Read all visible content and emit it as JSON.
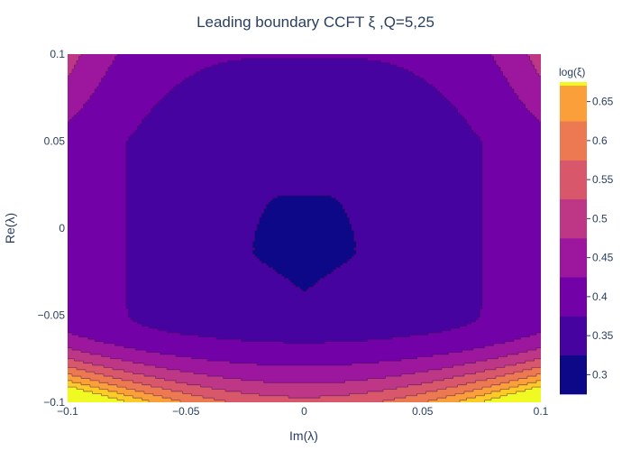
{
  "chart_data": {
    "type": "contour",
    "title": "Leading boundary CCFT ξ ,Q=5,25",
    "xlabel": "Im(λ)",
    "ylabel": "Re(λ)",
    "xlim": [
      -0.1,
      0.1
    ],
    "ylim": [
      -0.1,
      0.1
    ],
    "x_ticks": [
      {
        "value": -0.1,
        "label": "−0.1"
      },
      {
        "value": -0.05,
        "label": "−0.05"
      },
      {
        "value": 0,
        "label": "0"
      },
      {
        "value": 0.05,
        "label": "0.05"
      },
      {
        "value": 0.1,
        "label": "0.1"
      }
    ],
    "y_ticks": [
      {
        "value": -0.1,
        "label": "−0.1"
      },
      {
        "value": -0.05,
        "label": "−0.05"
      },
      {
        "value": 0,
        "label": "0"
      },
      {
        "value": 0.05,
        "label": "0.05"
      },
      {
        "value": 0.1,
        "label": "0.1"
      }
    ],
    "colorbar": {
      "title": "log(ξ)",
      "range": [
        0.275,
        0.675
      ],
      "ticks": [
        {
          "value": 0.3,
          "label": "0.3"
        },
        {
          "value": 0.35,
          "label": "0.35"
        },
        {
          "value": 0.4,
          "label": "0.4"
        },
        {
          "value": 0.45,
          "label": "0.45"
        },
        {
          "value": 0.5,
          "label": "0.5"
        },
        {
          "value": 0.55,
          "label": "0.55"
        },
        {
          "value": 0.6,
          "label": "0.6"
        },
        {
          "value": 0.65,
          "label": "0.65"
        }
      ]
    },
    "levels": [
      {
        "from": 0.275,
        "to": 0.325,
        "color": "#0d0887"
      },
      {
        "from": 0.325,
        "to": 0.375,
        "color": "#46039f"
      },
      {
        "from": 0.375,
        "to": 0.425,
        "color": "#7201a8"
      },
      {
        "from": 0.425,
        "to": 0.475,
        "color": "#9c179e"
      },
      {
        "from": 0.475,
        "to": 0.525,
        "color": "#bd3786"
      },
      {
        "from": 0.525,
        "to": 0.575,
        "color": "#d8576b"
      },
      {
        "from": 0.575,
        "to": 0.625,
        "color": "#ed7953"
      },
      {
        "from": 0.625,
        "to": 0.675,
        "color": "#fb9f3a"
      },
      {
        "from": 0.675,
        "to": 0.725,
        "color": "#fdca26"
      },
      {
        "from": 0.725,
        "to": 0.775,
        "color": "#f0f921"
      }
    ]
  }
}
